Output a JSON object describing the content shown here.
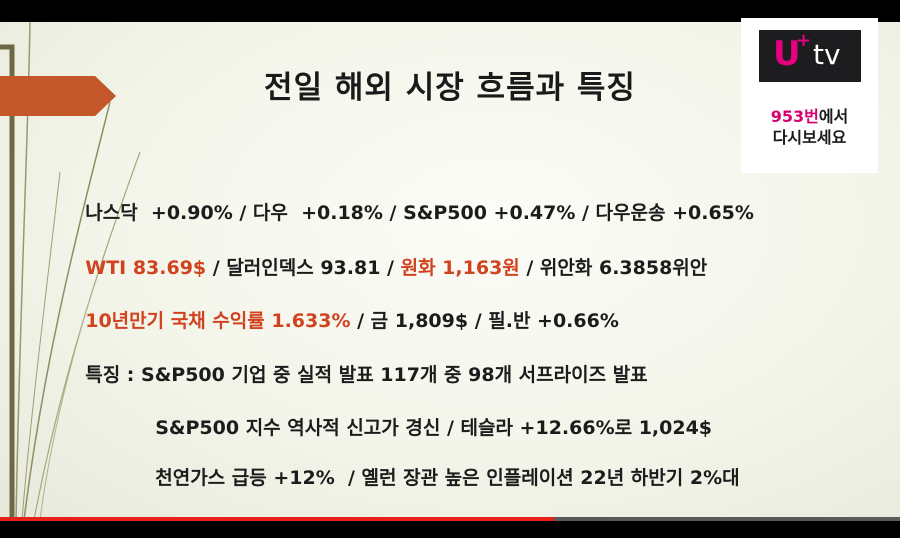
{
  "slide": {
    "title": "전일 해외 시장 흐름과 특징",
    "lines": [
      {
        "segments": [
          {
            "text": "나스닥  +0.90% / 다우  +0.18% / S&P500 +0.47% / 다우운송 +0.65%"
          }
        ]
      },
      {
        "segments": [
          {
            "text": "WTI 83.69$",
            "color": "red"
          },
          {
            "text": " / 달러인덱스 93.81 / "
          },
          {
            "text": "원화 1,163원",
            "color": "red"
          },
          {
            "text": " / 위안화 6.3858위안"
          }
        ]
      },
      {
        "segments": [
          {
            "text": "10년만기 국채 수익률 1.633%",
            "color": "red"
          },
          {
            "text": " / 금 1,809$ / 필.반 +0.66%"
          }
        ]
      },
      {
        "segments": [
          {
            "text": "특징 : S&P500 기업 중 실적 발표 117개 중 98개 서프라이즈 발표"
          }
        ]
      },
      {
        "segments": [
          {
            "text": "S&P500 지수 역사적 신고가 경신 / 테슬라 +12.66%로 1,024$"
          }
        ]
      },
      {
        "segments": [
          {
            "text": "천연가스 급등 +12%  / 옐런 장관 높은 인플레이션 22년 하반기 2%대"
          }
        ]
      }
    ]
  },
  "logo": {
    "brand_u": "U",
    "brand_plus": "+",
    "brand_tv": "tv",
    "channel": "953번",
    "line1_rest": "에서",
    "line2": "다시보세요"
  },
  "player": {
    "progress_fraction": 0.615
  },
  "colors": {
    "accent_red": "#d0431e",
    "arrow": "#c4572a",
    "progress": "#e62117",
    "brand_magenta": "#e4007f"
  }
}
